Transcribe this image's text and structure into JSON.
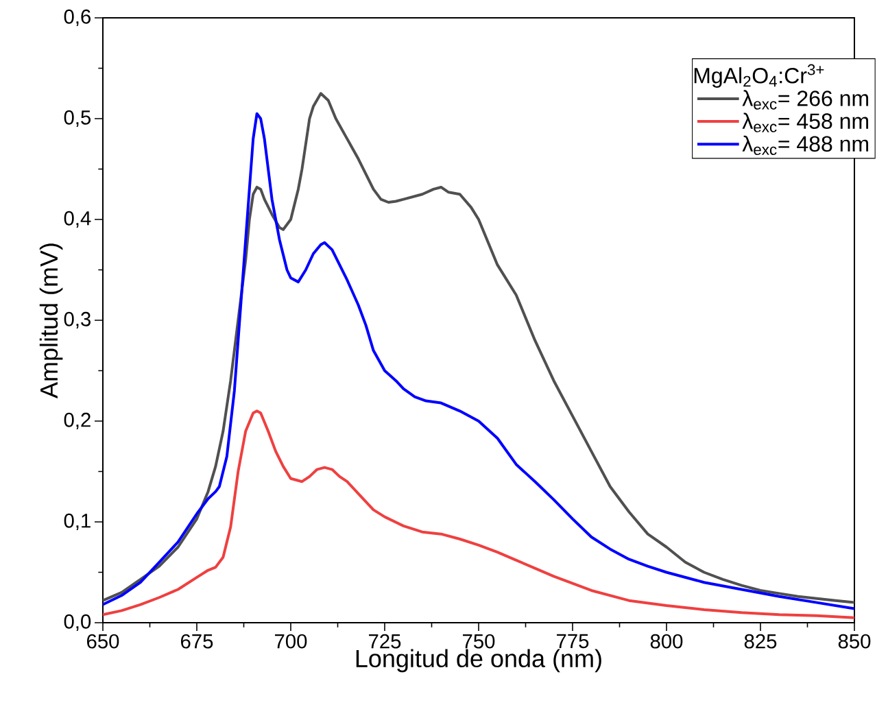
{
  "chart_data": {
    "type": "line",
    "xlabel": "Longitud de onda (nm)",
    "ylabel": "Amplitud (mV)",
    "legend_title": "MgAl$_{2}$O$_{4}$:Cr$^{3+}$",
    "legend": "top right",
    "xlim": [
      650,
      850
    ],
    "ylim": [
      0,
      0.6
    ],
    "xticks": [
      650,
      675,
      700,
      725,
      750,
      775,
      800,
      825,
      850
    ],
    "yticks": [
      {
        "value": 0,
        "label": "0,0"
      },
      {
        "value": 0.1,
        "label": "0,1"
      },
      {
        "value": 0.2,
        "label": "0,2"
      },
      {
        "value": 0.3,
        "label": "0,3"
      },
      {
        "value": 0.4,
        "label": "0,4"
      },
      {
        "value": 0.5,
        "label": "0,5"
      },
      {
        "value": 0.6,
        "label": "0,6"
      }
    ],
    "series": [
      {
        "name": "λ$_{exc}$= 266 nm",
        "color": "#505050",
        "x": [
          650,
          655,
          660,
          665,
          670,
          675,
          678,
          680,
          682,
          684,
          686,
          688,
          689,
          690,
          691,
          692,
          693,
          695,
          697,
          698,
          700,
          702,
          703,
          705,
          706,
          708,
          710,
          712,
          715,
          718,
          720,
          722,
          724,
          726,
          728,
          730,
          735,
          738,
          740,
          742,
          745,
          748,
          750,
          755,
          760,
          765,
          770,
          775,
          780,
          785,
          790,
          795,
          800,
          805,
          810,
          815,
          820,
          825,
          830,
          835,
          840,
          845,
          850
        ],
        "values": [
          0.022,
          0.03,
          0.043,
          0.056,
          0.075,
          0.103,
          0.13,
          0.155,
          0.19,
          0.24,
          0.3,
          0.36,
          0.4,
          0.425,
          0.432,
          0.43,
          0.42,
          0.405,
          0.392,
          0.39,
          0.4,
          0.43,
          0.45,
          0.5,
          0.512,
          0.525,
          0.518,
          0.5,
          0.48,
          0.46,
          0.445,
          0.43,
          0.42,
          0.417,
          0.418,
          0.42,
          0.425,
          0.43,
          0.432,
          0.427,
          0.425,
          0.412,
          0.4,
          0.355,
          0.325,
          0.28,
          0.24,
          0.205,
          0.17,
          0.135,
          0.11,
          0.088,
          0.075,
          0.06,
          0.05,
          0.043,
          0.037,
          0.032,
          0.029,
          0.026,
          0.024,
          0.022,
          0.02
        ]
      },
      {
        "name": "λ$_{exc}$= 458 nm",
        "color": "#ef4040",
        "x": [
          650,
          655,
          660,
          665,
          670,
          675,
          678,
          680,
          682,
          684,
          686,
          688,
          690,
          691,
          692,
          694,
          696,
          698,
          700,
          703,
          705,
          707,
          709,
          711,
          713,
          715,
          718,
          720,
          722,
          725,
          730,
          735,
          740,
          745,
          750,
          755,
          760,
          765,
          770,
          775,
          780,
          785,
          790,
          800,
          810,
          820,
          830,
          840,
          850
        ],
        "values": [
          0.008,
          0.012,
          0.018,
          0.025,
          0.033,
          0.045,
          0.052,
          0.055,
          0.065,
          0.095,
          0.15,
          0.19,
          0.208,
          0.21,
          0.208,
          0.19,
          0.17,
          0.155,
          0.143,
          0.14,
          0.145,
          0.152,
          0.154,
          0.152,
          0.145,
          0.14,
          0.128,
          0.12,
          0.112,
          0.105,
          0.096,
          0.09,
          0.088,
          0.083,
          0.077,
          0.07,
          0.062,
          0.054,
          0.046,
          0.039,
          0.032,
          0.027,
          0.022,
          0.017,
          0.013,
          0.01,
          0.008,
          0.007,
          0.005
        ]
      },
      {
        "name": "λ$_{exc}$= 488 nm",
        "color": "#0000ff",
        "x": [
          650,
          655,
          660,
          665,
          670,
          675,
          678,
          680,
          681,
          683,
          685,
          687,
          689,
          690,
          691,
          692,
          693,
          694,
          695,
          697,
          699,
          700,
          702,
          704,
          706,
          708,
          709,
          711,
          713,
          715,
          718,
          720,
          722,
          725,
          728,
          730,
          733,
          736,
          740,
          745,
          750,
          755,
          760,
          765,
          770,
          775,
          780,
          785,
          790,
          795,
          800,
          810,
          820,
          830,
          840,
          850
        ],
        "values": [
          0.018,
          0.027,
          0.04,
          0.06,
          0.08,
          0.108,
          0.123,
          0.13,
          0.135,
          0.165,
          0.23,
          0.33,
          0.43,
          0.48,
          0.505,
          0.5,
          0.48,
          0.45,
          0.42,
          0.38,
          0.35,
          0.342,
          0.338,
          0.35,
          0.366,
          0.375,
          0.377,
          0.37,
          0.355,
          0.34,
          0.315,
          0.295,
          0.27,
          0.25,
          0.24,
          0.232,
          0.224,
          0.22,
          0.218,
          0.21,
          0.2,
          0.183,
          0.157,
          0.14,
          0.122,
          0.103,
          0.085,
          0.073,
          0.063,
          0.056,
          0.05,
          0.04,
          0.033,
          0.026,
          0.02,
          0.014
        ]
      }
    ]
  }
}
